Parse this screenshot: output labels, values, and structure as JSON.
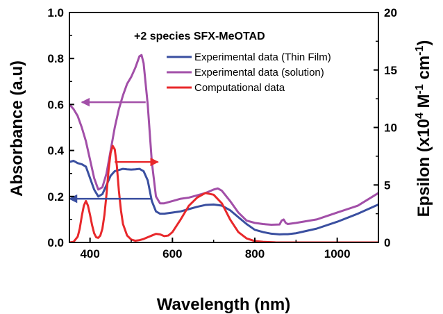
{
  "chart_data": {
    "type": "line",
    "title": "+2 species SFX-MeOTAD",
    "xlabel": "Wavelength (nm)",
    "ylabel_left": "Absorbance (a.u)",
    "ylabel_right": "Epsilon (x10^4 M^-1 cm^-1)",
    "ylabel_right_parts": {
      "prefix": "Epsilon (x10",
      "exp1": "4",
      "mid": " M",
      "exp2": "-1",
      "mid2": " cm",
      "exp3": "-1",
      "suffix": ")"
    },
    "xlim": [
      350,
      1100
    ],
    "ylim_left": [
      0,
      1.0
    ],
    "ylim_right": [
      0,
      20
    ],
    "x_ticks": [
      400,
      600,
      800,
      1000
    ],
    "x_tick_labels": [
      "400",
      "600",
      "800",
      "1000"
    ],
    "y_left_ticks": [
      0.0,
      0.2,
      0.4,
      0.6,
      0.8,
      1.0
    ],
    "y_left_tick_labels": [
      "0.0",
      "0.2",
      "0.4",
      "0.6",
      "0.8",
      "1.0"
    ],
    "y_right_ticks": [
      0,
      5,
      10,
      15,
      20
    ],
    "y_right_tick_labels": [
      "0",
      "5",
      "10",
      "15",
      "20"
    ],
    "grid": false,
    "legend_position": "top-right",
    "series": [
      {
        "name": "Experimental data (Thin Film)",
        "color": "#3a4fa0",
        "axis": "left",
        "x": [
          350,
          360,
          370,
          380,
          390,
          400,
          410,
          420,
          430,
          440,
          450,
          460,
          470,
          480,
          490,
          500,
          510,
          520,
          530,
          540,
          550,
          560,
          570,
          580,
          600,
          620,
          640,
          660,
          680,
          700,
          720,
          740,
          760,
          780,
          800,
          820,
          840,
          860,
          870,
          880,
          900,
          950,
          1000,
          1050,
          1100
        ],
        "y": [
          0.35,
          0.355,
          0.345,
          0.34,
          0.33,
          0.28,
          0.23,
          0.2,
          0.21,
          0.25,
          0.29,
          0.31,
          0.315,
          0.32,
          0.318,
          0.317,
          0.318,
          0.32,
          0.31,
          0.27,
          0.18,
          0.135,
          0.125,
          0.125,
          0.13,
          0.135,
          0.145,
          0.155,
          0.163,
          0.165,
          0.16,
          0.14,
          0.11,
          0.08,
          0.055,
          0.045,
          0.038,
          0.035,
          0.036,
          0.036,
          0.04,
          0.06,
          0.09,
          0.125,
          0.165
        ]
      },
      {
        "name": "Experimental data (solution)",
        "color": "#a24fa8",
        "axis": "left",
        "x": [
          350,
          360,
          370,
          380,
          390,
          400,
          410,
          420,
          430,
          440,
          450,
          460,
          470,
          480,
          490,
          500,
          510,
          520,
          525,
          530,
          540,
          550,
          560,
          570,
          580,
          600,
          620,
          640,
          660,
          680,
          700,
          710,
          720,
          740,
          760,
          780,
          800,
          820,
          840,
          860,
          865,
          870,
          875,
          880,
          900,
          950,
          1000,
          1050,
          1100
        ],
        "y": [
          0.6,
          0.58,
          0.55,
          0.5,
          0.44,
          0.36,
          0.28,
          0.23,
          0.24,
          0.3,
          0.4,
          0.5,
          0.58,
          0.64,
          0.69,
          0.72,
          0.76,
          0.81,
          0.815,
          0.78,
          0.6,
          0.35,
          0.2,
          0.17,
          0.17,
          0.18,
          0.19,
          0.195,
          0.205,
          0.215,
          0.23,
          0.235,
          0.225,
          0.18,
          0.13,
          0.095,
          0.085,
          0.08,
          0.077,
          0.078,
          0.095,
          0.1,
          0.085,
          0.08,
          0.085,
          0.1,
          0.13,
          0.16,
          0.215
        ]
      },
      {
        "name": "Computational data",
        "color": "#e8282b",
        "axis": "right",
        "x": [
          350,
          360,
          370,
          375,
          380,
          385,
          390,
          395,
          400,
          405,
          410,
          415,
          420,
          425,
          430,
          435,
          440,
          445,
          450,
          455,
          460,
          465,
          470,
          475,
          480,
          490,
          500,
          510,
          520,
          530,
          540,
          550,
          560,
          570,
          580,
          590,
          600,
          620,
          640,
          660,
          680,
          700,
          720,
          740,
          760,
          780,
          800,
          820,
          850,
          900,
          1000,
          1100
        ],
        "y": [
          0,
          0.05,
          0.5,
          1.2,
          2.3,
          3.2,
          3.6,
          3.2,
          2.4,
          1.5,
          0.8,
          0.45,
          0.4,
          0.6,
          1.2,
          2.4,
          4.2,
          6.3,
          7.8,
          8.4,
          8.1,
          6.7,
          4.5,
          2.8,
          1.6,
          0.6,
          0.25,
          0.15,
          0.2,
          0.3,
          0.45,
          0.6,
          0.75,
          0.7,
          0.55,
          0.6,
          0.9,
          2.0,
          3.2,
          3.9,
          4.3,
          4.15,
          3.4,
          2.0,
          0.9,
          0.35,
          0.12,
          0.05,
          0.01,
          0,
          0,
          0
        ]
      }
    ],
    "annotations": {
      "arrows": [
        {
          "id": "solution-left",
          "color": "#a24fa8",
          "direction": "left",
          "from": [
            535,
            0.61
          ],
          "to": [
            380,
            0.61
          ],
          "axis": "left"
        },
        {
          "id": "computational-right",
          "color": "#e8282b",
          "direction": "right",
          "from": [
            460,
            0.35
          ],
          "to": [
            565,
            0.35
          ],
          "axis": "left"
        },
        {
          "id": "thinfilm-left",
          "color": "#3a4fa0",
          "direction": "left",
          "from": [
            550,
            0.19
          ],
          "to": [
            350,
            0.19
          ],
          "axis": "left"
        }
      ]
    }
  }
}
